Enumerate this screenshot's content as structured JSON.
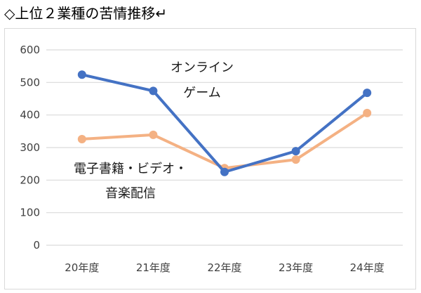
{
  "title": "◇上位２業種の苦情推移↵",
  "chart_data": {
    "type": "line",
    "categories": [
      "20年度",
      "21年度",
      "22年度",
      "23年度",
      "24年度"
    ],
    "ylim": [
      0,
      600
    ],
    "yticks": [
      "0",
      "100",
      "200",
      "300",
      "400",
      "500",
      "600"
    ],
    "grid": true,
    "legend": "none",
    "series": [
      {
        "values": [
          524,
          474,
          225,
          289,
          468
        ],
        "color": "#4472c4",
        "annotation": [
          "オンライン",
          "ゲーム"
        ]
      },
      {
        "values": [
          326,
          339,
          237,
          263,
          406
        ],
        "color": "#f4b183",
        "annotation": [
          "電子書籍・ビデオ・",
          "音楽配信"
        ]
      }
    ]
  }
}
